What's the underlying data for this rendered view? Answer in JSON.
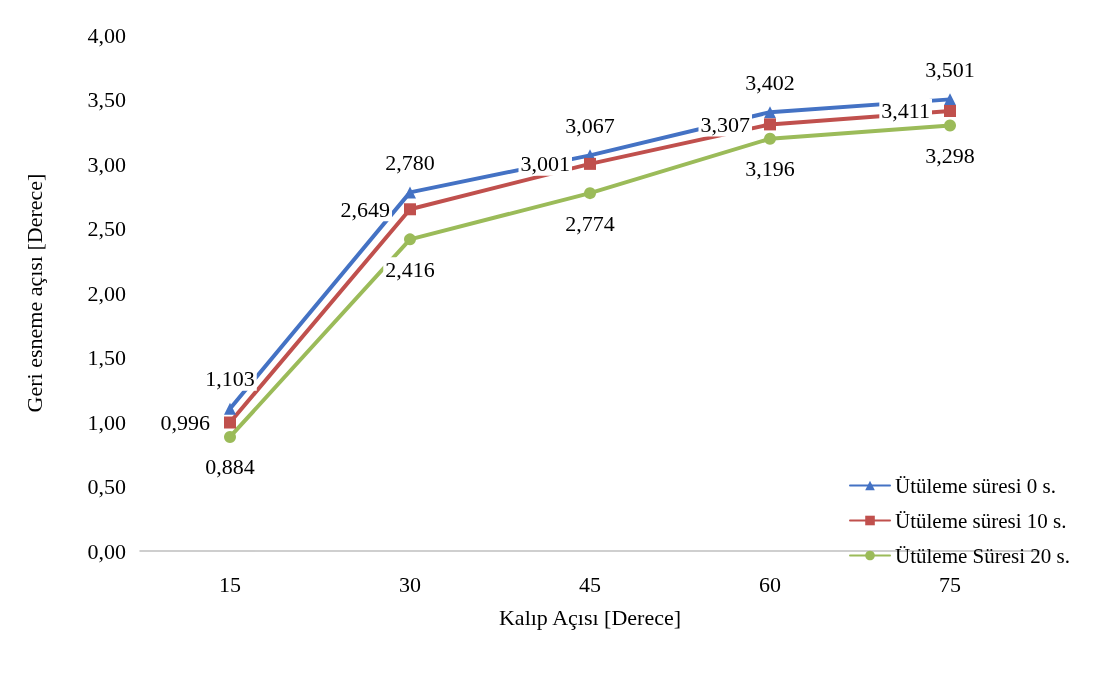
{
  "chart_data": {
    "type": "line",
    "xlabel": "Kalıp Açısı [Derece]",
    "ylabel": "Geri esneme açısı [Derece]",
    "categories": [
      "15",
      "30",
      "45",
      "60",
      "75"
    ],
    "ylim": [
      0,
      4
    ],
    "yticks": [
      {
        "value": 0,
        "label": "0,00"
      },
      {
        "value": 0.5,
        "label": "0,50"
      },
      {
        "value": 1,
        "label": "1,00"
      },
      {
        "value": 1.5,
        "label": "1,50"
      },
      {
        "value": 2,
        "label": "2,00"
      },
      {
        "value": 2.5,
        "label": "2,50"
      },
      {
        "value": 3,
        "label": "3,00"
      },
      {
        "value": 3.5,
        "label": "3,50"
      },
      {
        "value": 4,
        "label": "4,00"
      }
    ],
    "legend": "bottom right",
    "line_style": "solid",
    "series": [
      {
        "name": "Ütüleme süresi 0 s.",
        "color": "#4472c4",
        "marker": "triangle",
        "values": [
          1.103,
          2.78,
          3.067,
          3.402,
          3.501
        ],
        "value_labels": [
          "1,103",
          "2,780",
          "3,067",
          "3,402",
          "3,501"
        ]
      },
      {
        "name": "Ütüleme süresi 10 s.",
        "color": "#c0504d",
        "marker": "square",
        "values": [
          0.996,
          2.649,
          3.001,
          3.307,
          3.411
        ],
        "value_labels": [
          "0,996",
          "2,649",
          "3,001",
          "3,307",
          "3,411"
        ]
      },
      {
        "name": "Ütüleme Süresi 20 s.",
        "color": "#9bbb59",
        "marker": "circle",
        "values": [
          0.884,
          2.416,
          2.774,
          3.196,
          3.298
        ],
        "value_labels": [
          "0,884",
          "2,416",
          "2,774",
          "3,196",
          "3,298"
        ]
      }
    ]
  }
}
